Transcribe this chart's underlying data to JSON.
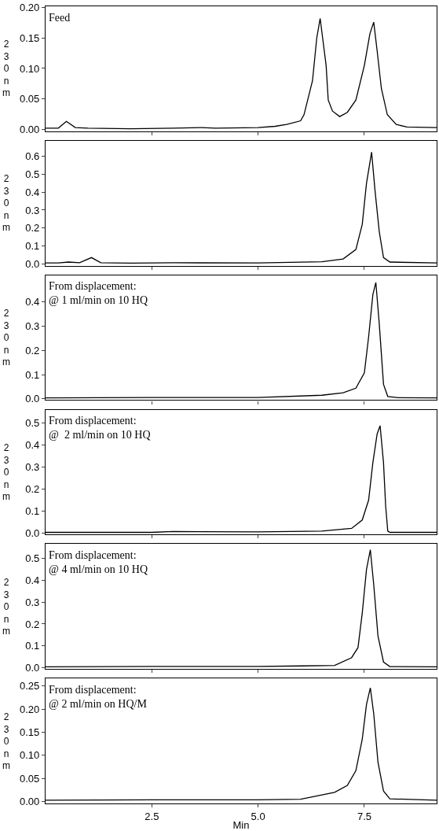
{
  "chart_data": [
    {
      "type": "line",
      "title": "Feed",
      "ylabel": "230nm",
      "tick_labels": "y",
      "xlim": [
        0,
        9.2
      ],
      "xticks": [
        {
          "value": 2.5,
          "label": null
        },
        {
          "value": 5,
          "label": null
        },
        {
          "value": 7.5,
          "label": null
        }
      ],
      "ylim": [
        -0.003,
        0.202
      ],
      "yticks": [
        {
          "value": 0,
          "label": "0.00"
        },
        0.05,
        {
          "value": 0.1,
          "label": "0.10"
        },
        0.15,
        {
          "value": 0.2,
          "label": "0.20"
        }
      ],
      "series": [
        {
          "color": "#000000",
          "x": [
            0,
            0.3,
            0.49,
            0.7,
            1.0,
            2.0,
            3.0,
            3.67,
            4.0,
            5.0,
            5.4,
            5.67,
            6.0,
            6.08,
            6.28,
            6.38,
            6.46,
            6.6,
            6.65,
            6.75,
            6.92,
            7.1,
            7.3,
            7.5,
            7.63,
            7.72,
            7.8,
            7.9,
            8.04,
            8.25,
            8.5,
            9.2
          ],
          "values": [
            0.002,
            0.002,
            0.013,
            0.003,
            0.002,
            0.001,
            0.002,
            0.003,
            0.002,
            0.003,
            0.005,
            0.008,
            0.014,
            0.024,
            0.08,
            0.15,
            0.182,
            0.105,
            0.048,
            0.03,
            0.021,
            0.028,
            0.048,
            0.105,
            0.157,
            0.176,
            0.129,
            0.067,
            0.024,
            0.008,
            0.004,
            0.003
          ]
        }
      ]
    },
    {
      "type": "line",
      "ylabel": "230nm",
      "tick_labels": "y",
      "xlim": [
        0,
        9.2
      ],
      "xticks": [
        {
          "value": 2.5,
          "label": null
        },
        {
          "value": 5,
          "label": null
        },
        {
          "value": 7.5,
          "label": null
        }
      ],
      "ylim": [
        -0.01,
        0.687
      ],
      "yticks": [
        {
          "value": 0,
          "label": "0.0"
        },
        0.1,
        0.2,
        0.3,
        0.4,
        0.5,
        0.6
      ],
      "series": [
        {
          "color": "#000000",
          "x": [
            0,
            0.3,
            0.54,
            0.8,
            1.08,
            1.3,
            2.0,
            3.0,
            5.0,
            6.5,
            7.0,
            7.3,
            7.45,
            7.55,
            7.67,
            7.75,
            7.85,
            7.95,
            8.1,
            9.2
          ],
          "values": [
            0.005,
            0.005,
            0.01,
            0.006,
            0.035,
            0.006,
            0.004,
            0.006,
            0.005,
            0.012,
            0.027,
            0.08,
            0.22,
            0.45,
            0.623,
            0.41,
            0.18,
            0.035,
            0.01,
            0.005
          ]
        }
      ]
    },
    {
      "type": "line",
      "title": "From displacement:\n@ 1 ml/min on 10 HQ",
      "ylabel": "230nm",
      "tick_labels": "y",
      "xlim": [
        0,
        9.2
      ],
      "xticks": [
        {
          "value": 2.5,
          "label": null
        },
        {
          "value": 5,
          "label": null
        },
        {
          "value": 7.5,
          "label": null
        }
      ],
      "ylim": [
        -0.005,
        0.51
      ],
      "yticks": [
        {
          "value": 0,
          "label": "0.0"
        },
        0.1,
        0.2,
        0.3,
        0.4
      ],
      "series": [
        {
          "color": "#000000",
          "x": [
            0,
            2.5,
            5.0,
            6.5,
            7.0,
            7.3,
            7.5,
            7.6,
            7.7,
            7.77,
            7.85,
            7.95,
            8.05,
            8.3,
            9.2
          ],
          "values": [
            0.004,
            0.006,
            0.006,
            0.015,
            0.025,
            0.044,
            0.107,
            0.256,
            0.43,
            0.48,
            0.31,
            0.06,
            0.01,
            0.005,
            0.004
          ]
        }
      ]
    },
    {
      "type": "line",
      "title": "From displacement:\n@  2 ml/min on 10 HQ",
      "ylabel": "230nm",
      "tick_labels": "y",
      "xlim": [
        0,
        9.2
      ],
      "xticks": [
        {
          "value": 2.5,
          "label": null
        },
        {
          "value": 5,
          "label": null
        },
        {
          "value": 7.5,
          "label": null
        }
      ],
      "ylim": [
        -0.006,
        0.56
      ],
      "yticks": [
        {
          "value": 0,
          "label": "0.0"
        },
        0.1,
        0.2,
        0.3,
        0.4,
        0.5
      ],
      "series": [
        {
          "color": "#000000",
          "x": [
            0,
            2.5,
            3.0,
            5.0,
            6.5,
            7.2,
            7.45,
            7.6,
            7.7,
            7.8,
            7.87,
            7.95,
            8.0,
            8.05,
            8.1,
            9.2
          ],
          "values": [
            0.004,
            0.004,
            0.008,
            0.006,
            0.01,
            0.022,
            0.06,
            0.15,
            0.32,
            0.45,
            0.487,
            0.32,
            0.125,
            0.01,
            0.004,
            0.004
          ]
        }
      ]
    },
    {
      "type": "line",
      "title": "From displacement:\n@ 4 ml/min on 10 HQ",
      "ylabel": "230nm",
      "tick_labels": "y",
      "xlim": [
        0,
        9.2
      ],
      "xticks": [
        {
          "value": 2.5,
          "label": null
        },
        {
          "value": 5,
          "label": null
        },
        {
          "value": 7.5,
          "label": null
        }
      ],
      "ylim": [
        -0.006,
        0.566
      ],
      "yticks": [
        {
          "value": 0,
          "label": "0.0"
        },
        0.1,
        0.2,
        0.3,
        0.4,
        0.5
      ],
      "series": [
        {
          "color": "#000000",
          "x": [
            0,
            2.5,
            5.0,
            6.0,
            6.8,
            7.2,
            7.35,
            7.45,
            7.55,
            7.64,
            7.72,
            7.82,
            7.95,
            8.1,
            9.2
          ],
          "values": [
            0.004,
            0.006,
            0.006,
            0.008,
            0.01,
            0.046,
            0.092,
            0.25,
            0.45,
            0.54,
            0.38,
            0.145,
            0.026,
            0.005,
            0.004
          ]
        }
      ]
    },
    {
      "type": "line",
      "title": "From displacement:\n@ 2 ml/min on HQ/M",
      "ylabel": "230nm",
      "xlabel": "Min",
      "xlim": [
        0,
        9.2
      ],
      "xticks": [
        2.5,
        {
          "value": 5,
          "label": "5.0"
        },
        7.5
      ],
      "ylim": [
        -0.004,
        0.266
      ],
      "yticks": [
        {
          "value": 0,
          "label": "0.00"
        },
        0.05,
        {
          "value": 0.1,
          "label": "0.10"
        },
        0.15,
        {
          "value": 0.2,
          "label": "0.20"
        },
        0.25
      ],
      "series": [
        {
          "color": "#000000",
          "x": [
            0,
            2.5,
            5.0,
            6.0,
            6.8,
            7.1,
            7.3,
            7.45,
            7.55,
            7.64,
            7.72,
            7.82,
            7.95,
            8.1,
            9.2
          ],
          "values": [
            0.003,
            0.004,
            0.004,
            0.005,
            0.02,
            0.035,
            0.067,
            0.135,
            0.21,
            0.246,
            0.19,
            0.085,
            0.023,
            0.006,
            0.003
          ]
        }
      ]
    }
  ]
}
